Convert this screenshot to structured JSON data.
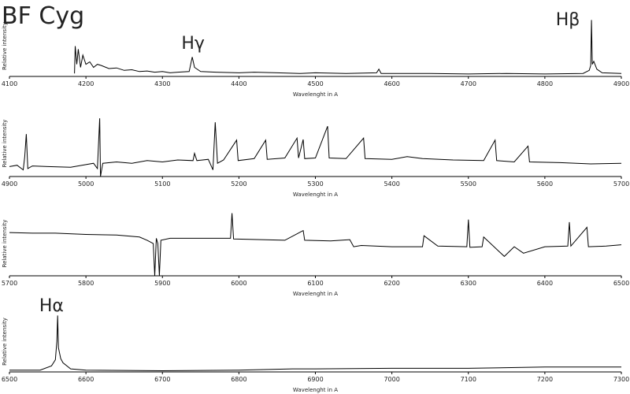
{
  "chart_data": [
    {
      "type": "line",
      "title": "BF Cyg",
      "xlabel": "Wavelenght in A",
      "ylabel": "Relative intensity",
      "color": "#000000",
      "xlim": [
        4100,
        4900
      ],
      "xticks": [
        4100,
        4200,
        4300,
        4400,
        4500,
        4600,
        4700,
        4800,
        4900
      ],
      "ylim": [
        0,
        1
      ],
      "annotations": [
        {
          "text": "Hγ",
          "x": 4340
        },
        {
          "text": "Hβ",
          "x": 4830
        }
      ],
      "x": [
        4185,
        4186,
        4188,
        4190,
        4193,
        4196,
        4200,
        4205,
        4210,
        4215,
        4220,
        4230,
        4240,
        4250,
        4260,
        4270,
        4280,
        4290,
        4300,
        4310,
        4320,
        4335,
        4339,
        4342,
        4350,
        4370,
        4400,
        4420,
        4450,
        4480,
        4500,
        4540,
        4580,
        4583,
        4586,
        4620,
        4650,
        4700,
        4750,
        4800,
        4850,
        4858,
        4860,
        4861,
        4862,
        4864,
        4868,
        4875,
        4900
      ],
      "y": [
        0.05,
        0.5,
        0.2,
        0.45,
        0.15,
        0.35,
        0.2,
        0.24,
        0.15,
        0.2,
        0.18,
        0.13,
        0.14,
        0.1,
        0.11,
        0.08,
        0.09,
        0.07,
        0.08,
        0.06,
        0.07,
        0.08,
        0.32,
        0.15,
        0.08,
        0.07,
        0.06,
        0.07,
        0.06,
        0.05,
        0.06,
        0.05,
        0.06,
        0.12,
        0.05,
        0.05,
        0.05,
        0.04,
        0.05,
        0.04,
        0.05,
        0.1,
        0.18,
        0.93,
        0.2,
        0.25,
        0.12,
        0.06,
        0.05
      ]
    },
    {
      "type": "line",
      "xlabel": "Wavelenght in A",
      "ylabel": "Relative intensity",
      "color": "#000000",
      "xlim": [
        4900,
        5700
      ],
      "xticks": [
        4900,
        5000,
        5100,
        5200,
        5300,
        5400,
        5500,
        5600,
        5700
      ],
      "ylim": [
        0,
        1
      ],
      "x": [
        4900,
        4910,
        4918,
        4920,
        4922,
        4924,
        4930,
        4950,
        4980,
        5000,
        5010,
        5015,
        5018,
        5019,
        5022,
        5040,
        5060,
        5080,
        5100,
        5120,
        5140,
        5142,
        5145,
        5160,
        5166,
        5169,
        5172,
        5180,
        5197,
        5199,
        5220,
        5235,
        5237,
        5260,
        5276,
        5278,
        5284,
        5286,
        5300,
        5316,
        5318,
        5340,
        5363,
        5365,
        5400,
        5420,
        5440,
        5480,
        5520,
        5535,
        5537,
        5560,
        5578,
        5580,
        5620,
        5660,
        5700
      ],
      "y": [
        0.15,
        0.17,
        0.1,
        0.3,
        0.64,
        0.12,
        0.16,
        0.15,
        0.14,
        0.18,
        0.2,
        0.12,
        0.88,
        0.0,
        0.2,
        0.22,
        0.2,
        0.24,
        0.22,
        0.25,
        0.24,
        0.35,
        0.24,
        0.26,
        0.1,
        0.82,
        0.2,
        0.25,
        0.55,
        0.24,
        0.27,
        0.55,
        0.26,
        0.28,
        0.58,
        0.28,
        0.56,
        0.27,
        0.28,
        0.76,
        0.28,
        0.27,
        0.58,
        0.27,
        0.26,
        0.3,
        0.27,
        0.25,
        0.24,
        0.55,
        0.24,
        0.22,
        0.46,
        0.22,
        0.21,
        0.19,
        0.2
      ]
    },
    {
      "type": "line",
      "xlabel": "Wavelenght in A",
      "ylabel": "Relative intensity",
      "color": "#000000",
      "xlim": [
        5700,
        6500
      ],
      "xticks": [
        5700,
        5800,
        5900,
        6000,
        6100,
        6200,
        6300,
        6400,
        6500
      ],
      "ylim": [
        0,
        1
      ],
      "x": [
        5700,
        5730,
        5760,
        5800,
        5840,
        5870,
        5880,
        5888,
        5890,
        5892,
        5894,
        5896,
        5898,
        5910,
        5950,
        5989,
        5991,
        5993,
        6030,
        6060,
        6084,
        6086,
        6120,
        6145,
        6150,
        6160,
        6200,
        6240,
        6242,
        6260,
        6298,
        6300,
        6302,
        6318,
        6320,
        6347,
        6360,
        6372,
        6400,
        6430,
        6432,
        6434,
        6455,
        6457,
        6480,
        6500
      ],
      "y": [
        0.67,
        0.66,
        0.66,
        0.64,
        0.63,
        0.6,
        0.55,
        0.5,
        0.0,
        0.58,
        0.5,
        0.0,
        0.55,
        0.58,
        0.58,
        0.58,
        0.97,
        0.57,
        0.56,
        0.55,
        0.7,
        0.55,
        0.54,
        0.56,
        0.45,
        0.47,
        0.45,
        0.45,
        0.62,
        0.46,
        0.45,
        0.87,
        0.44,
        0.45,
        0.6,
        0.3,
        0.45,
        0.35,
        0.45,
        0.46,
        0.83,
        0.46,
        0.75,
        0.45,
        0.46,
        0.48
      ]
    },
    {
      "type": "line",
      "xlabel": "Wavelenght in A",
      "ylabel": "Relative intensity",
      "color": "#000000",
      "xlim": [
        6500,
        7300
      ],
      "xticks": [
        6500,
        6600,
        6700,
        6800,
        6900,
        7000,
        7100,
        7200,
        7300
      ],
      "ylim": [
        0,
        1
      ],
      "annotations": [
        {
          "text": "Hα",
          "x": 6555
        }
      ],
      "x": [
        6500,
        6520,
        6540,
        6555,
        6560,
        6562,
        6563,
        6564,
        6567,
        6570,
        6580,
        6600,
        6700,
        6800,
        6870,
        6900,
        7000,
        7100,
        7200,
        7300
      ],
      "y": [
        0.03,
        0.03,
        0.03,
        0.1,
        0.2,
        0.5,
        0.93,
        0.4,
        0.22,
        0.15,
        0.05,
        0.03,
        0.02,
        0.03,
        0.05,
        0.05,
        0.06,
        0.06,
        0.08,
        0.08
      ]
    }
  ]
}
